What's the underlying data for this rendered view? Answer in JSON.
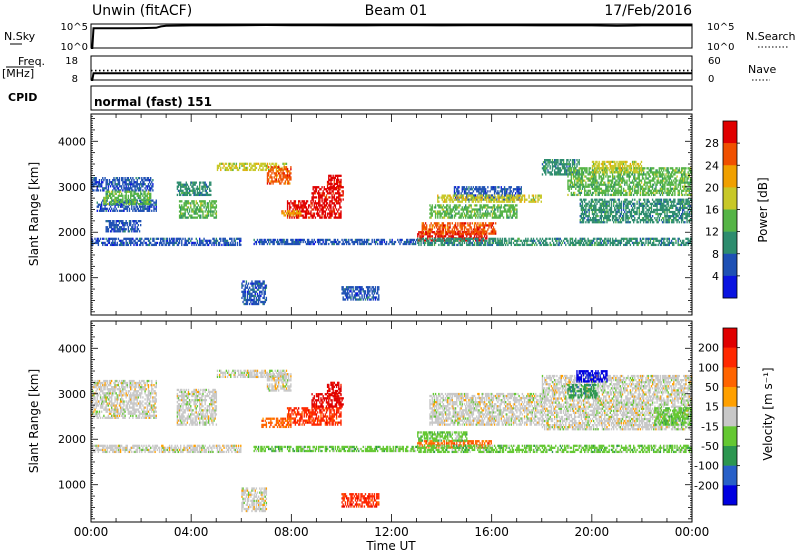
{
  "header": {
    "station": "Unwin (fitACF)",
    "beam": "Beam 01",
    "date": "17/Feb/2016"
  },
  "chart_data": [
    {
      "type": "line",
      "panel": "noise",
      "left_label": "N.Sky",
      "right_label": "N.Search",
      "left_ticks": [
        "10^5",
        "10^0"
      ],
      "right_ticks": [
        "10^5",
        "10^0"
      ],
      "x_range_hours": [
        0,
        24
      ],
      "series": [
        {
          "style": "solid",
          "x": [
            0.0,
            0.05,
            0.1,
            0.5,
            1.0,
            2.0,
            2.6,
            2.8,
            3.0,
            4.0,
            5.0,
            6.0,
            7.0,
            8.0,
            9.0,
            10.0,
            11.0,
            12.0,
            13.0,
            14.0,
            15.0,
            16.0,
            17.0,
            18.0,
            19.0,
            20.0,
            21.0,
            22.0,
            23.0,
            24.0
          ],
          "y": [
            0.0,
            0.0,
            0.82,
            0.82,
            0.82,
            0.83,
            0.84,
            0.9,
            0.93,
            0.94,
            0.94,
            0.95,
            0.96,
            0.95,
            0.95,
            0.94,
            0.94,
            0.95,
            0.95,
            0.94,
            0.95,
            0.95,
            0.95,
            0.94,
            0.94,
            0.94,
            0.93,
            0.94,
            0.94,
            0.94
          ]
        }
      ]
    },
    {
      "type": "line",
      "panel": "frequency",
      "left_label": "Freq.",
      "left_units": "[MHz]",
      "right_label": "Nave",
      "left_ticks": [
        "18",
        "8"
      ],
      "right_ticks": [
        "60",
        "0"
      ],
      "x_range_hours": [
        0,
        24
      ],
      "series": [
        {
          "style": "solid",
          "x": [
            0,
            0.05,
            0.1,
            24
          ],
          "y": [
            8,
            8,
            10.8,
            10.8
          ]
        },
        {
          "style": "dotted",
          "x": [
            0,
            24
          ],
          "y": [
            11.9,
            11.9
          ]
        }
      ]
    },
    {
      "type": "table",
      "panel": "cpid",
      "label": "CPID",
      "value": "normal (fast) 151"
    },
    {
      "type": "heatmap",
      "panel": "power",
      "ylabel": "Slant Range [km]",
      "xlim": [
        0,
        24
      ],
      "ylim": [
        180,
        4600
      ],
      "y_ticks": [
        1000,
        2000,
        3000,
        4000
      ],
      "colorbar": {
        "label": "Power [dB]",
        "ticks": [
          "4",
          "8",
          "12",
          "16",
          "20",
          "24",
          "28"
        ],
        "colors": [
          "#0a14e0",
          "#1e50b4",
          "#2d8c6e",
          "#55b446",
          "#c8c828",
          "#f0a000",
          "#f05000",
          "#e00000"
        ]
      },
      "regions": [
        {
          "t": [
            0.0,
            2.5
          ],
          "r": [
            2900,
            3200
          ],
          "level": 1
        },
        {
          "t": [
            0.2,
            2.6
          ],
          "r": [
            2450,
            2700
          ],
          "level": 1
        },
        {
          "t": [
            0.5,
            2.4
          ],
          "r": [
            2600,
            2900
          ],
          "level": 3
        },
        {
          "t": [
            0.0,
            6.0
          ],
          "r": [
            1700,
            1850
          ],
          "level": 1
        },
        {
          "t": [
            0.6,
            2.0
          ],
          "r": [
            2000,
            2250
          ],
          "level": 1
        },
        {
          "t": [
            3.5,
            5.0
          ],
          "r": [
            2300,
            2700
          ],
          "level": 3
        },
        {
          "t": [
            3.4,
            4.8
          ],
          "r": [
            2800,
            3100
          ],
          "level": 2
        },
        {
          "t": [
            5.0,
            7.8
          ],
          "r": [
            3350,
            3500
          ],
          "level": 4
        },
        {
          "t": [
            7.0,
            8.0
          ],
          "r": [
            3050,
            3450
          ],
          "level": 6
        },
        {
          "t": [
            7.8,
            10.0
          ],
          "r": [
            2300,
            2700
          ],
          "level": 7
        },
        {
          "t": [
            8.8,
            10.1
          ],
          "r": [
            2700,
            3000
          ],
          "level": 7
        },
        {
          "t": [
            9.4,
            10.0
          ],
          "r": [
            2950,
            3250
          ],
          "level": 7
        },
        {
          "t": [
            7.6,
            8.4
          ],
          "r": [
            2350,
            2450
          ],
          "level": 5
        },
        {
          "t": [
            6.5,
            13.0
          ],
          "r": [
            1720,
            1830
          ],
          "level": 1
        },
        {
          "t": [
            13.0,
            15.8
          ],
          "r": [
            1800,
            2000
          ],
          "level": 7
        },
        {
          "t": [
            13.2,
            16.2
          ],
          "r": [
            1950,
            2200
          ],
          "level": 6
        },
        {
          "t": [
            13.5,
            17.0
          ],
          "r": [
            2300,
            2600
          ],
          "level": 3
        },
        {
          "t": [
            14.5,
            17.2
          ],
          "r": [
            2700,
            3000
          ],
          "level": 1
        },
        {
          "t": [
            13.8,
            18.0
          ],
          "r": [
            2650,
            2800
          ],
          "level": 4
        },
        {
          "t": [
            13.0,
            18.0
          ],
          "r": [
            1700,
            1850
          ],
          "level": 2
        },
        {
          "t": [
            18.0,
            24.0
          ],
          "r": [
            1700,
            1850
          ],
          "level": 2
        },
        {
          "t": [
            18.0,
            19.5
          ],
          "r": [
            3250,
            3600
          ],
          "level": 2
        },
        {
          "t": [
            19.0,
            24.0
          ],
          "r": [
            2800,
            3400
          ],
          "level": 3
        },
        {
          "t": [
            19.5,
            24.0
          ],
          "r": [
            2200,
            2700
          ],
          "level": 2
        },
        {
          "t": [
            20.0,
            22.0
          ],
          "r": [
            3300,
            3550
          ],
          "level": 4
        },
        {
          "t": [
            6.0,
            7.0
          ],
          "r": [
            400,
            900
          ],
          "level": 1
        },
        {
          "t": [
            10.0,
            11.5
          ],
          "r": [
            500,
            800
          ],
          "level": 1
        }
      ]
    },
    {
      "type": "heatmap",
      "panel": "velocity",
      "xlabel": "Time UT",
      "ylabel": "Slant Range [km]",
      "xlim": [
        0,
        24
      ],
      "ylim": [
        180,
        4600
      ],
      "x_ticks": [
        "00:00",
        "04:00",
        "08:00",
        "12:00",
        "16:00",
        "20:00",
        "00:00"
      ],
      "y_ticks": [
        1000,
        2000,
        3000,
        4000
      ],
      "colorbar": {
        "label": "Velocity [m s⁻¹]",
        "ticks": [
          "200",
          "100",
          "50",
          "15",
          "-15",
          "-50",
          "-100",
          "-200"
        ],
        "colors": [
          "#0000e0",
          "#2860c8",
          "#2c9650",
          "#64c832",
          "#c8c8c8",
          "#ffa000",
          "#ff6400",
          "#ff2800",
          "#e00000"
        ]
      },
      "regions": [
        {
          "t": [
            0.0,
            2.6
          ],
          "r": [
            2450,
            3300
          ],
          "level": 4
        },
        {
          "t": [
            0.0,
            6.0
          ],
          "r": [
            1700,
            1850
          ],
          "level": 4
        },
        {
          "t": [
            3.4,
            5.0
          ],
          "r": [
            2300,
            3100
          ],
          "level": 4
        },
        {
          "t": [
            5.0,
            7.8
          ],
          "r": [
            3350,
            3500
          ],
          "level": 4
        },
        {
          "t": [
            7.0,
            8.0
          ],
          "r": [
            3050,
            3450
          ],
          "level": 4
        },
        {
          "t": [
            7.8,
            10.0
          ],
          "r": [
            2300,
            2700
          ],
          "level": 7
        },
        {
          "t": [
            8.8,
            10.1
          ],
          "r": [
            2700,
            3000
          ],
          "level": 8
        },
        {
          "t": [
            9.4,
            10.0
          ],
          "r": [
            2950,
            3250
          ],
          "level": 8
        },
        {
          "t": [
            6.8,
            8.0
          ],
          "r": [
            2250,
            2450
          ],
          "level": 6
        },
        {
          "t": [
            6.5,
            13.0
          ],
          "r": [
            1720,
            1830
          ],
          "level": 3
        },
        {
          "t": [
            13.0,
            16.0
          ],
          "r": [
            1800,
            1950
          ],
          "level": 6
        },
        {
          "t": [
            13.0,
            15.0
          ],
          "r": [
            1950,
            2150
          ],
          "level": 3
        },
        {
          "t": [
            13.5,
            18.0
          ],
          "r": [
            2300,
            3000
          ],
          "level": 4
        },
        {
          "t": [
            13.0,
            24.0
          ],
          "r": [
            1700,
            1850
          ],
          "level": 3
        },
        {
          "t": [
            18.0,
            24.0
          ],
          "r": [
            2200,
            3400
          ],
          "level": 4
        },
        {
          "t": [
            19.4,
            20.6
          ],
          "r": [
            3250,
            3500
          ],
          "level": 0
        },
        {
          "t": [
            19.0,
            20.2
          ],
          "r": [
            2900,
            3200
          ],
          "level": 2
        },
        {
          "t": [
            22.5,
            24.0
          ],
          "r": [
            2300,
            2700
          ],
          "level": 3
        },
        {
          "t": [
            6.0,
            7.0
          ],
          "r": [
            400,
            900
          ],
          "level": 4
        },
        {
          "t": [
            10.0,
            11.5
          ],
          "r": [
            500,
            800
          ],
          "level": 7
        }
      ]
    }
  ]
}
